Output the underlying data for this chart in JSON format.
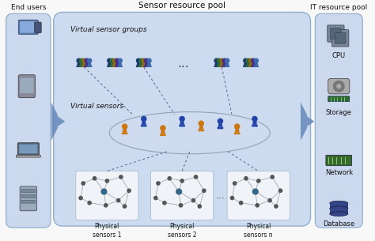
{
  "title_sensor": "Sensor resource pool",
  "title_it": "IT resource pool",
  "title_end": "End users",
  "label_vsg": "Virtual sensor groups",
  "label_vs": "Virtual sensors",
  "label_ps1": "Physical\nsensors 1",
  "label_ps2": "Physical\nsensors 2",
  "label_psn": "Physical\nsensors n",
  "label_cpu": "CPU",
  "label_storage": "Storage",
  "label_network": "Network",
  "label_database": "Database",
  "bg_color": "#eef3fb",
  "center_box_color": "#c8d8ee",
  "center_box_border": "#8aaac8",
  "arrow_color": "#6688bb",
  "side_panel_color": "#ccd8ee",
  "side_panel_border": "#8aaac8",
  "sensor_box_color": "#f0f4f8",
  "sensor_box_border": "#aabbcc",
  "orange_pawn": "#cc7710",
  "blue_pawn": "#2244aa",
  "dots_color": "#444444",
  "text_color": "#111111",
  "fig_bg": "#f8f8f8",
  "dashed_color": "#556688",
  "group_colors": [
    "#c04040",
    "#2244aa",
    "#338833",
    "#886600"
  ],
  "sensor_line_color": "#999999",
  "sensor_node_color": "#555555",
  "sensor_gw_color": "#336688"
}
